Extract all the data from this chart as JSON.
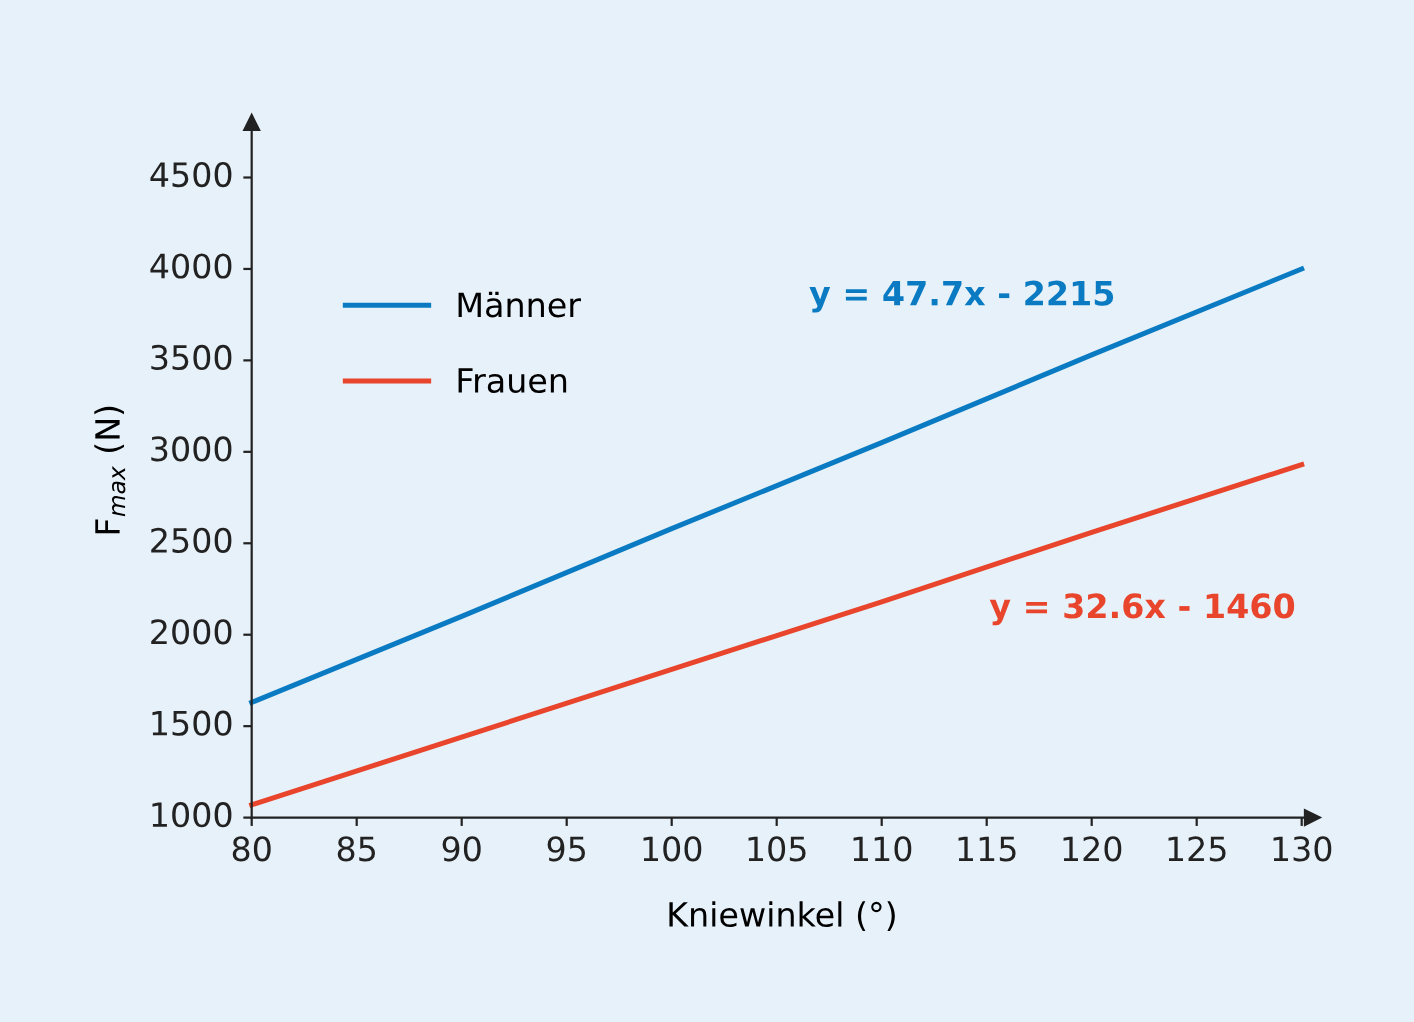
{
  "chart_data": {
    "type": "line",
    "xlabel": "Kniewinkel (°)",
    "ylabel": "F$_{max}$ (N)",
    "series": [
      {
        "name": "Männer",
        "color": "#0a7bc2",
        "x": [
          80,
          90,
          100,
          110,
          120,
          130
        ],
        "values": [
          1630,
          2100,
          2580,
          3050,
          3530,
          4000
        ]
      },
      {
        "name": "Frauen",
        "color": "#e8452c",
        "x": [
          80,
          90,
          100,
          110,
          120,
          130
        ],
        "values": [
          1070,
          1440,
          1810,
          2180,
          2560,
          2930
        ]
      }
    ],
    "annotations": [
      "y = 47.7x - 2215",
      "y = 32.6x - 1460"
    ],
    "xlim": [
      80,
      130.5
    ],
    "ylim": [
      1000,
      4800
    ],
    "xticks": [
      80,
      85,
      90,
      95,
      100,
      105,
      110,
      115,
      120,
      125,
      130
    ],
    "yticks": [
      1000,
      1500,
      2000,
      2500,
      3000,
      3500,
      4000,
      4500
    ],
    "legend": "top left",
    "grid": false,
    "marker": "none",
    "line_style": "solid"
  }
}
